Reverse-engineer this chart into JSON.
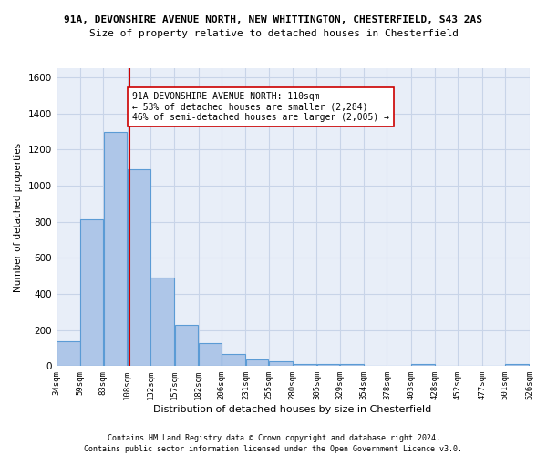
{
  "title1": "91A, DEVONSHIRE AVENUE NORTH, NEW WHITTINGTON, CHESTERFIELD, S43 2AS",
  "title2": "Size of property relative to detached houses in Chesterfield",
  "xlabel": "Distribution of detached houses by size in Chesterfield",
  "ylabel": "Number of detached properties",
  "bar_color": "#aec6e8",
  "bar_edge_color": "#5b9bd5",
  "grid_color": "#c8d4e8",
  "background_color": "#e8eef8",
  "property_line_x": 110,
  "property_line_color": "#cc0000",
  "bin_edges": [
    34,
    59,
    83,
    108,
    132,
    157,
    182,
    206,
    231,
    255,
    280,
    305,
    329,
    354,
    378,
    403,
    428,
    452,
    477,
    501,
    526
  ],
  "bar_heights": [
    140,
    815,
    1295,
    1090,
    490,
    230,
    130,
    68,
    38,
    27,
    14,
    14,
    14,
    0,
    0,
    14,
    0,
    0,
    0,
    14
  ],
  "tick_labels": [
    "34sqm",
    "59sqm",
    "83sqm",
    "108sqm",
    "132sqm",
    "157sqm",
    "182sqm",
    "206sqm",
    "231sqm",
    "255sqm",
    "280sqm",
    "305sqm",
    "329sqm",
    "354sqm",
    "378sqm",
    "403sqm",
    "428sqm",
    "452sqm",
    "477sqm",
    "501sqm",
    "526sqm"
  ],
  "annotation_text": "91A DEVONSHIRE AVENUE NORTH: 110sqm\n← 53% of detached houses are smaller (2,284)\n46% of semi-detached houses are larger (2,005) →",
  "annotation_box_color": "#ffffff",
  "annotation_box_edge": "#cc0000",
  "ylim": [
    0,
    1650
  ],
  "footnote1": "Contains HM Land Registry data © Crown copyright and database right 2024.",
  "footnote2": "Contains public sector information licensed under the Open Government Licence v3.0."
}
